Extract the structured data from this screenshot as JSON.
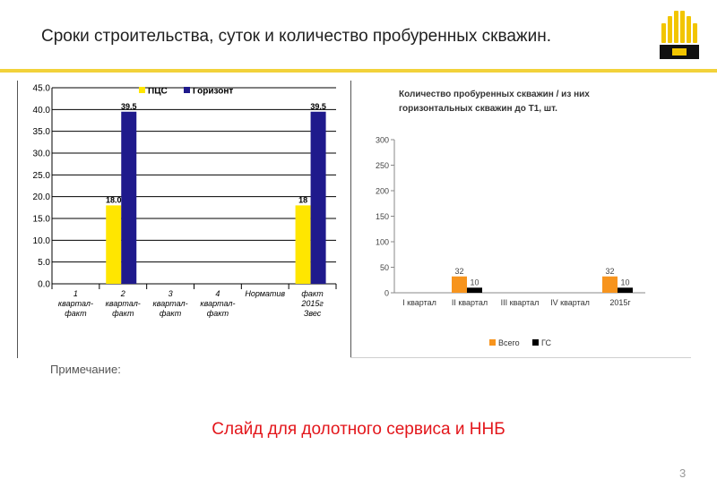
{
  "title": "Сроки строительства, суток и количество пробуренных скважин.",
  "note_label": "Примечание:",
  "subtitle": "Слайд для долотного сервиса и ННБ",
  "page_number": "3",
  "colors": {
    "accent_yellow": "#FFE600",
    "navy": "#1F1A8C",
    "orange": "#F7941D",
    "black": "#000000",
    "rule_yellow": "#F2D23A",
    "red_text": "#E3161B"
  },
  "logo": {
    "icon": "rosneft-logo-icon"
  },
  "chart_data": [
    {
      "type": "bar",
      "title": "",
      "categories": [
        [
          "1",
          "квартал-",
          "факт"
        ],
        [
          "2",
          "квартал-",
          "факт"
        ],
        [
          "3",
          "квартал-",
          "факт"
        ],
        [
          "4",
          "квартал-",
          "факт"
        ],
        [
          "Норматив"
        ],
        [
          "факт",
          "2015г",
          "Звес"
        ]
      ],
      "series": [
        {
          "name": "ПЦС",
          "color": "#FFE600",
          "values": [
            null,
            18.0,
            null,
            null,
            null,
            18.0
          ],
          "labels": [
            "",
            "18.0",
            "",
            "",
            "",
            "18"
          ]
        },
        {
          "name": "Горизонт",
          "color": "#1F1A8C",
          "values": [
            null,
            39.5,
            null,
            null,
            null,
            39.5
          ],
          "labels": [
            "",
            "39.5",
            "",
            "",
            "",
            "39.5"
          ]
        }
      ],
      "ylim": [
        0,
        45
      ],
      "yticks": [
        "0.0",
        "5.0",
        "10.0",
        "15.0",
        "20.0",
        "25.0",
        "30.0",
        "35.0",
        "40.0",
        "45.0"
      ],
      "grid": true,
      "legend": "top"
    },
    {
      "type": "bar",
      "title_lines": [
        "Количество пробуренных скважин / из них",
        "горизонтальных скважин до Т1, шт."
      ],
      "categories": [
        "I квартал",
        "II квартал",
        "III квартал",
        "IV квартал",
        "2015г"
      ],
      "series": [
        {
          "name": "Всего",
          "color": "#F7941D",
          "values": [
            null,
            32,
            null,
            null,
            32
          ],
          "labels": [
            "",
            "32",
            "",
            "",
            "32"
          ]
        },
        {
          "name": "ГС",
          "color": "#000000",
          "values": [
            null,
            10,
            null,
            null,
            10
          ],
          "labels": [
            "",
            "10",
            "",
            "",
            "10"
          ]
        }
      ],
      "ylim": [
        0,
        300
      ],
      "yticks": [
        "0",
        "50",
        "100",
        "150",
        "200",
        "250",
        "300"
      ],
      "grid": false,
      "legend": "bottom"
    }
  ]
}
